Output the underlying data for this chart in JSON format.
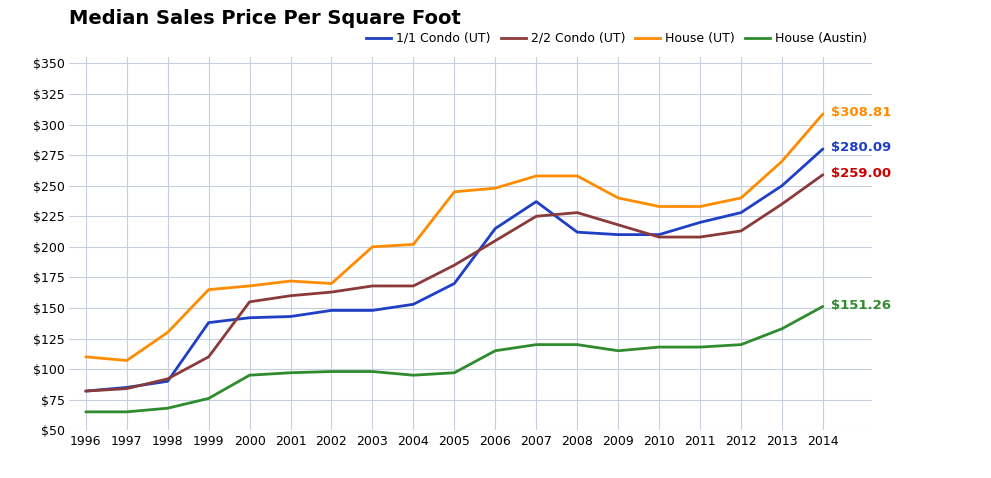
{
  "title": "Median Sales Price Per Square Foot",
  "years": [
    1996,
    1997,
    1998,
    1999,
    2000,
    2001,
    2002,
    2003,
    2004,
    2005,
    2006,
    2007,
    2008,
    2009,
    2010,
    2011,
    2012,
    2013,
    2014
  ],
  "series": {
    "1/1 Condo (UT)": {
      "values": [
        82,
        85,
        90,
        138,
        142,
        143,
        148,
        148,
        153,
        170,
        215,
        237,
        212,
        210,
        210,
        220,
        228,
        250,
        280.09
      ],
      "color": "#1f3fc4",
      "label_color": "#1f3fc4",
      "end_label": "$280.09"
    },
    "2/2 Condo (UT)": {
      "values": [
        82,
        84,
        92,
        110,
        155,
        160,
        163,
        168,
        168,
        185,
        205,
        225,
        228,
        218,
        208,
        208,
        213,
        235,
        259.0
      ],
      "color": "#8b3a3a",
      "label_color": "#cc0000",
      "end_label": "$259.00"
    },
    "House (UT)": {
      "values": [
        110,
        107,
        130,
        165,
        168,
        172,
        170,
        200,
        202,
        245,
        248,
        258,
        258,
        240,
        233,
        233,
        240,
        270,
        308.81
      ],
      "color": "#ff8c00",
      "label_color": "#ff8c00",
      "end_label": "$308.81"
    },
    "House (Austin)": {
      "values": [
        65,
        65,
        68,
        76,
        95,
        97,
        98,
        98,
        95,
        97,
        115,
        120,
        120,
        115,
        118,
        118,
        120,
        133,
        151.26
      ],
      "color": "#2e8b2e",
      "label_color": "#2e8b2e",
      "end_label": "$151.26"
    }
  },
  "ylim": [
    50,
    355
  ],
  "yticks": [
    50,
    75,
    100,
    125,
    150,
    175,
    200,
    225,
    250,
    275,
    300,
    325,
    350
  ],
  "background_color": "#ffffff",
  "grid_color": "#c8d0e0",
  "title_fontsize": 14,
  "legend_order": [
    "1/1 Condo (UT)",
    "2/2 Condo (UT)",
    "House (UT)",
    "House (Austin)"
  ]
}
